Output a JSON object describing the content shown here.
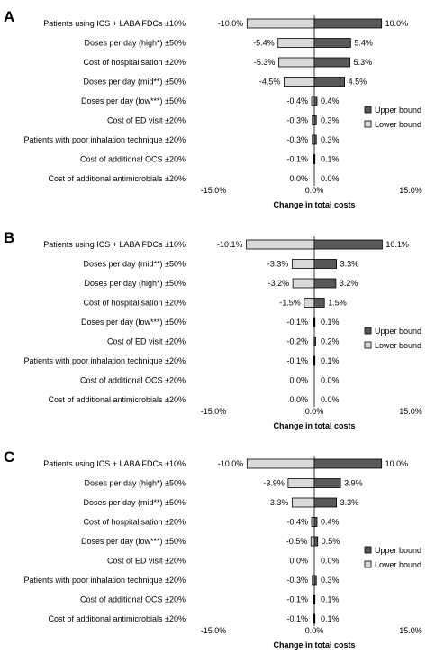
{
  "chart_data": [
    {
      "type": "bar",
      "panel": "A",
      "categories": [
        "Patients using ICS + LABA FDCs ±10%",
        "Doses per day (high*) ±50%",
        "Cost of hospitalisation ±20%",
        "Doses per day (mid**) ±50%",
        "Doses per day (low***) ±50%",
        "Cost of ED visit ±20%",
        "Patients with poor inhalation technique ±20%",
        "Cost of additional OCS ±20%",
        "Cost of additional antimicrobials ±20%"
      ],
      "series": [
        {
          "name": "Lower bound",
          "values": [
            -10.0,
            -5.4,
            -5.3,
            -4.5,
            -0.4,
            -0.3,
            -0.3,
            -0.1,
            0.0
          ],
          "labels": [
            "-10.0%",
            "-5.4%",
            "-5.3%",
            "-4.5%",
            "-0.4%",
            "-0.3%",
            "-0.3%",
            "-0.1%",
            "0.0%"
          ]
        },
        {
          "name": "Upper bound",
          "values": [
            10.0,
            5.4,
            5.3,
            4.5,
            0.4,
            0.3,
            0.3,
            0.1,
            0.0
          ],
          "labels": [
            "10.0%",
            "5.4%",
            "5.3%",
            "4.5%",
            "0.4%",
            "0.3%",
            "0.3%",
            "0.1%",
            "0.0%"
          ]
        }
      ],
      "xlabel": "Change in total costs",
      "xlim": [
        -15,
        15
      ],
      "xticks": [
        "-15.0%",
        "0.0%",
        "15.0%"
      ],
      "legend": "right"
    },
    {
      "type": "bar",
      "panel": "B",
      "categories": [
        "Patients using ICS + LABA FDCs ±10%",
        "Doses per day (mid**) ±50%",
        "Doses per day (high*) ±50%",
        "Cost of hospitalisation ±20%",
        "Doses per day (low***) ±50%",
        "Cost of ED visit ±20%",
        "Patients with poor inhalation technique ±20%",
        "Cost of additional OCS ±20%",
        "Cost of additional antimicrobials ±20%"
      ],
      "series": [
        {
          "name": "Lower bound",
          "values": [
            -10.1,
            -3.3,
            -3.2,
            -1.5,
            -0.1,
            -0.2,
            -0.1,
            0.0,
            0.0
          ],
          "labels": [
            "-10.1%",
            "-3.3%",
            "-3.2%",
            "-1.5%",
            "-0.1%",
            "-0.2%",
            "-0.1%",
            "0.0%",
            "0.0%"
          ]
        },
        {
          "name": "Upper bound",
          "values": [
            10.1,
            3.3,
            3.2,
            1.5,
            0.1,
            0.2,
            0.1,
            0.0,
            0.0
          ],
          "labels": [
            "10.1%",
            "3.3%",
            "3.2%",
            "1.5%",
            "0.1%",
            "0.2%",
            "0.1%",
            "0.0%",
            "0.0%"
          ]
        }
      ],
      "xlabel": "Change in total costs",
      "xlim": [
        -15,
        15
      ],
      "xticks": [
        "-15.0%",
        "0.0%",
        "15.0%"
      ],
      "legend": "right"
    },
    {
      "type": "bar",
      "panel": "C",
      "categories": [
        "Patients using ICS + LABA FDCs ±10%",
        "Doses per day (high*) ±50%",
        "Doses per day (mid**) ±50%",
        "Cost of hospitalisation ±20%",
        "Doses per day (low***) ±50%",
        "Cost of ED visit ±20%",
        "Patients with poor inhalation technique ±20%",
        "Cost of additional OCS ±20%",
        "Cost of additional antimicrobials ±20%"
      ],
      "series": [
        {
          "name": "Lower bound",
          "values": [
            -10.0,
            -3.9,
            -3.3,
            -0.4,
            -0.5,
            0.0,
            -0.3,
            -0.1,
            -0.1
          ],
          "labels": [
            "-10.0%",
            "-3.9%",
            "-3.3%",
            "-0.4%",
            "-0.5%",
            "0.0%",
            "-0.3%",
            "-0.1%",
            "-0.1%"
          ]
        },
        {
          "name": "Upper bound",
          "values": [
            10.0,
            3.9,
            3.3,
            0.4,
            0.5,
            0.0,
            0.3,
            0.1,
            0.1
          ],
          "labels": [
            "10.0%",
            "3.9%",
            "3.3%",
            "0.4%",
            "0.5%",
            "0.0%",
            "0.3%",
            "0.1%",
            "0.1%"
          ]
        }
      ],
      "xlabel": "Change in total costs",
      "xlim": [
        -15,
        15
      ],
      "xticks": [
        "-15.0%",
        "0.0%",
        "15.0%"
      ],
      "legend": "right"
    }
  ],
  "colors": {
    "lower": "#d9d9d9",
    "upper": "#595959",
    "stroke": "#000000"
  }
}
